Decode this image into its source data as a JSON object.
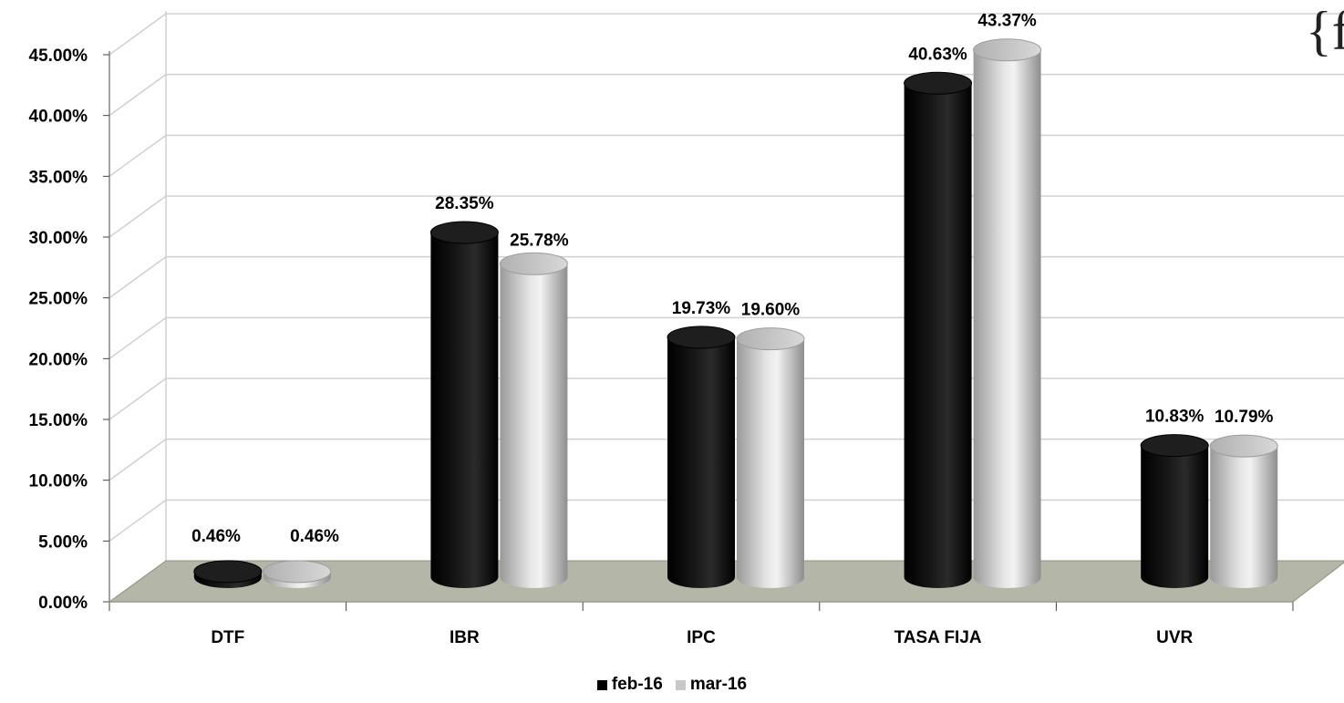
{
  "chart_data": {
    "type": "bar",
    "title": "",
    "xlabel": "",
    "ylabel": "",
    "categories": [
      "DTF",
      "IBR",
      "IPC",
      "TASA FIJA",
      "UVR"
    ],
    "series": [
      {
        "name": "feb-16",
        "color": "#000000",
        "values": [
          0.46,
          28.35,
          19.73,
          40.63,
          10.83
        ],
        "labels": [
          "0.46%",
          "28.35%",
          "19.73%",
          "40.63%",
          "10.83%"
        ]
      },
      {
        "name": "mar-16",
        "color": "#c8c8c8",
        "values": [
          0.46,
          25.78,
          19.6,
          43.37,
          10.79
        ],
        "labels": [
          "0.46%",
          "25.78%",
          "19.60%",
          "43.37%",
          "10.79%"
        ]
      }
    ],
    "ylim": [
      0,
      45
    ],
    "yticks": [
      "0.00%",
      "5.00%",
      "10.00%",
      "15.00%",
      "20.00%",
      "25.00%",
      "30.00%",
      "35.00%",
      "40.00%",
      "45.00%"
    ],
    "grid": true,
    "style": "3d-cylinder",
    "legend_position": "bottom",
    "floor_color": "#b4b6a8"
  },
  "corner_text": "{f"
}
